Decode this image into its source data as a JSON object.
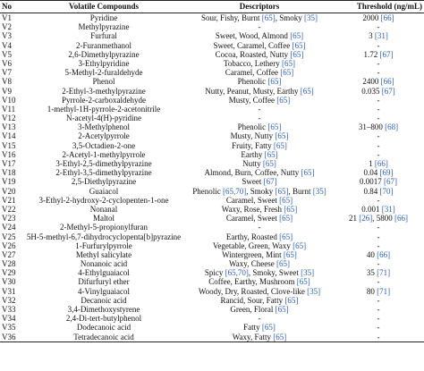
{
  "headers": {
    "no": "No",
    "compound": "Volatile Compounds",
    "descriptors": "Descriptors",
    "threshold": "Threshold (ng/mL)"
  },
  "rows": [
    {
      "no": "V1",
      "compound": "Pyridine",
      "descriptors": [
        [
          "Sour, Fishy, Burnt ",
          0
        ],
        [
          "[65]",
          1
        ],
        [
          ", Smoky ",
          0
        ],
        [
          "[35]",
          1
        ]
      ],
      "threshold": [
        [
          "2000 ",
          0
        ],
        [
          "[66]",
          1
        ]
      ]
    },
    {
      "no": "V2",
      "compound": "Methylpyrazine",
      "descriptors": [
        [
          "-",
          0
        ]
      ],
      "threshold": [
        [
          "-",
          0
        ]
      ]
    },
    {
      "no": "V3",
      "compound": "Furfural",
      "descriptors": [
        [
          "Sweet, Wood, Almond ",
          0
        ],
        [
          "[65]",
          1
        ]
      ],
      "threshold": [
        [
          "3 ",
          0
        ],
        [
          "[31]",
          1
        ]
      ]
    },
    {
      "no": "V4",
      "compound": "2-Furanmethanol",
      "descriptors": [
        [
          "Sweet, Caramel, Coffee ",
          0
        ],
        [
          "[65]",
          1
        ]
      ],
      "threshold": [
        [
          "-",
          0
        ]
      ]
    },
    {
      "no": "V5",
      "compound": "2,6-Dimethylpyrazine",
      "descriptors": [
        [
          "Cocoa, Roasted, Nutty ",
          0
        ],
        [
          "[65]",
          1
        ]
      ],
      "threshold": [
        [
          "1.72 ",
          0
        ],
        [
          "[67]",
          1
        ]
      ]
    },
    {
      "no": "V6",
      "compound": "3-Ethylpyridine",
      "descriptors": [
        [
          "Tobacco, Lethery ",
          0
        ],
        [
          "[65]",
          1
        ]
      ],
      "threshold": [
        [
          "-",
          0
        ]
      ]
    },
    {
      "no": "V7",
      "compound": "5-Methyl-2-furaldehyde",
      "descriptors": [
        [
          "Caramel, Coffee ",
          0
        ],
        [
          "[65]",
          1
        ]
      ],
      "threshold": [
        [
          "-",
          0
        ]
      ]
    },
    {
      "no": "V8",
      "compound": "Phenol",
      "descriptors": [
        [
          "Phenolic ",
          0
        ],
        [
          "[65]",
          1
        ]
      ],
      "threshold": [
        [
          "2400 ",
          0
        ],
        [
          "[66]",
          1
        ]
      ]
    },
    {
      "no": "V9",
      "compound": "2-Ethyl-3-methylpyrazine",
      "descriptors": [
        [
          "Nutty, Peanut, Musty, Earthy ",
          0
        ],
        [
          "[65]",
          1
        ]
      ],
      "threshold": [
        [
          "0.035 ",
          0
        ],
        [
          "[67]",
          1
        ]
      ]
    },
    {
      "no": "V10",
      "compound": "Pyrrole-2-carboxaldehyde",
      "descriptors": [
        [
          "Musty, Coffee ",
          0
        ],
        [
          "[65]",
          1
        ]
      ],
      "threshold": [
        [
          "-",
          0
        ]
      ]
    },
    {
      "no": "V11",
      "compound": "1-methyl-1H-pyrrole-2-acetonitrile",
      "descriptors": [
        [
          "-",
          0
        ]
      ],
      "threshold": [
        [
          "-",
          0
        ]
      ]
    },
    {
      "no": "V12",
      "compound": "N-acetyl-4(H)-pyridine",
      "descriptors": [
        [
          "-",
          0
        ]
      ],
      "threshold": [
        [
          "-",
          0
        ]
      ]
    },
    {
      "no": "V13",
      "compound": "3-Methylphenol",
      "descriptors": [
        [
          "Phenolic ",
          0
        ],
        [
          "[65]",
          1
        ]
      ],
      "threshold": [
        [
          "31–800 ",
          0
        ],
        [
          "[68]",
          1
        ]
      ]
    },
    {
      "no": "V14",
      "compound": "2-Acetylpyrrole",
      "descriptors": [
        [
          "Musty, Nutty ",
          0
        ],
        [
          "[65]",
          1
        ]
      ],
      "threshold": [
        [
          "-",
          0
        ]
      ]
    },
    {
      "no": "V15",
      "compound": "3,5-Octadien-2-one",
      "descriptors": [
        [
          "Fruity, Fatty ",
          0
        ],
        [
          "[65]",
          1
        ]
      ],
      "threshold": [
        [
          "-",
          0
        ]
      ]
    },
    {
      "no": "V16",
      "compound": "2-Acetyl-1-methylpyrrole",
      "descriptors": [
        [
          "Earthy ",
          0
        ],
        [
          "[65]",
          1
        ]
      ],
      "threshold": [
        [
          "-",
          0
        ]
      ]
    },
    {
      "no": "V17",
      "compound": "3-Ethyl-2,5-dimethylpyrazine",
      "descriptors": [
        [
          "Nutty ",
          0
        ],
        [
          "[65]",
          1
        ]
      ],
      "threshold": [
        [
          "1 ",
          0
        ],
        [
          "[66]",
          1
        ]
      ]
    },
    {
      "no": "V18",
      "compound": "2-Ethyl-3,5-dimethylpyrazine",
      "descriptors": [
        [
          "Almond, Burn, Coffee, Nutty ",
          0
        ],
        [
          "[65]",
          1
        ]
      ],
      "threshold": [
        [
          "0.04 ",
          0
        ],
        [
          "[69]",
          1
        ]
      ]
    },
    {
      "no": "V19",
      "compound": "2,5-Diethylpyrazine",
      "descriptors": [
        [
          "Sweet ",
          0
        ],
        [
          "[67]",
          1
        ]
      ],
      "threshold": [
        [
          "0.0017 ",
          0
        ],
        [
          "[67]",
          1
        ]
      ]
    },
    {
      "no": "V20",
      "compound": "Guaiacol",
      "descriptors": [
        [
          "Phenolic ",
          0
        ],
        [
          "[65,70]",
          1
        ],
        [
          ", Smoky ",
          0
        ],
        [
          "[65]",
          1
        ],
        [
          ", Burnt ",
          0
        ],
        [
          "[35]",
          1
        ]
      ],
      "threshold": [
        [
          "0.84 ",
          0
        ],
        [
          "[70]",
          1
        ]
      ]
    },
    {
      "no": "V21",
      "compound": "3-Ethyl-2-hydroxy-2-cyclopenten-1-one",
      "descriptors": [
        [
          "Caramel, Sweet ",
          0
        ],
        [
          "[65]",
          1
        ]
      ],
      "threshold": [
        [
          "-",
          0
        ]
      ]
    },
    {
      "no": "V22",
      "compound": "Nonanal",
      "descriptors": [
        [
          "Waxy, Rose, Fresh ",
          0
        ],
        [
          "[65]",
          1
        ]
      ],
      "threshold": [
        [
          "0.001 ",
          0
        ],
        [
          "[31]",
          1
        ]
      ]
    },
    {
      "no": "V23",
      "compound": "Maltol",
      "descriptors": [
        [
          "Caramel, Sweet ",
          0
        ],
        [
          "[65]",
          1
        ]
      ],
      "threshold": [
        [
          "21 ",
          0
        ],
        [
          "[26]",
          1
        ],
        [
          ", 5800 ",
          0
        ],
        [
          "[66]",
          1
        ]
      ]
    },
    {
      "no": "V24",
      "compound": "2-Methyl-5-propionylfuran",
      "descriptors": [
        [
          "-",
          0
        ]
      ],
      "threshold": [
        [
          "-",
          0
        ]
      ]
    },
    {
      "no": "V25",
      "compound": "5H-5-methyl-6,7-dihydrocyclopenta[b]pyrazine",
      "descriptors": [
        [
          "Earthy, Roasted ",
          0
        ],
        [
          "[65]",
          1
        ]
      ],
      "threshold": [
        [
          "-",
          0
        ]
      ]
    },
    {
      "no": "V26",
      "compound": "1-Furfurylpyrrole",
      "descriptors": [
        [
          "Vegetable, Green, Waxy ",
          0
        ],
        [
          "[65]",
          1
        ]
      ],
      "threshold": [
        [
          "-",
          0
        ]
      ]
    },
    {
      "no": "V27",
      "compound": "Methyl salicylate",
      "descriptors": [
        [
          "Wintergreen, Mint ",
          0
        ],
        [
          "[65]",
          1
        ]
      ],
      "threshold": [
        [
          "40 ",
          0
        ],
        [
          "[66]",
          1
        ]
      ]
    },
    {
      "no": "V28",
      "compound": "Nonanoic acid",
      "descriptors": [
        [
          "Waxy, Cheese ",
          0
        ],
        [
          "[65]",
          1
        ]
      ],
      "threshold": [
        [
          "-",
          0
        ]
      ]
    },
    {
      "no": "V29",
      "compound": "4-Ethylguaiacol",
      "descriptors": [
        [
          "Spicy ",
          0
        ],
        [
          "[65,70]",
          1
        ],
        [
          ", Smoky, Sweet ",
          0
        ],
        [
          "[35]",
          1
        ]
      ],
      "threshold": [
        [
          "35 ",
          0
        ],
        [
          "[71]",
          1
        ]
      ]
    },
    {
      "no": "V30",
      "compound": "Difurfuryl ether",
      "descriptors": [
        [
          "Coffee, Earthy, Mushroom ",
          0
        ],
        [
          "[65]",
          1
        ]
      ],
      "threshold": [
        [
          "-",
          0
        ]
      ]
    },
    {
      "no": "V31",
      "compound": "4-Vinylguaiacol",
      "descriptors": [
        [
          "Woody, Dry, Roasted, Clove-like ",
          0
        ],
        [
          "[35]",
          1
        ]
      ],
      "threshold": [
        [
          "80 ",
          0
        ],
        [
          "[71]",
          1
        ]
      ]
    },
    {
      "no": "V32",
      "compound": "Decanoic acid",
      "descriptors": [
        [
          "Rancid, Sour, Fatty ",
          0
        ],
        [
          "[65]",
          1
        ]
      ],
      "threshold": [
        [
          "-",
          0
        ]
      ]
    },
    {
      "no": "V33",
      "compound": "3,4-Dimethoxystyrene",
      "descriptors": [
        [
          "Green, Floral ",
          0
        ],
        [
          "[65]",
          1
        ]
      ],
      "threshold": [
        [
          "-",
          0
        ]
      ]
    },
    {
      "no": "V34",
      "compound": "2,4-Di-tert-butylphenol",
      "descriptors": [
        [
          "-",
          0
        ]
      ],
      "threshold": [
        [
          "-",
          0
        ]
      ]
    },
    {
      "no": "V35",
      "compound": "Dodecanoic acid",
      "descriptors": [
        [
          "Fatty ",
          0
        ],
        [
          "[65]",
          1
        ]
      ],
      "threshold": [
        [
          "-",
          0
        ]
      ]
    },
    {
      "no": "V36",
      "compound": "Tetradecanoic acid",
      "descriptors": [
        [
          "Waxy, Fatty ",
          0
        ],
        [
          "[65]",
          1
        ]
      ],
      "threshold": [
        [
          "-",
          0
        ]
      ]
    }
  ]
}
